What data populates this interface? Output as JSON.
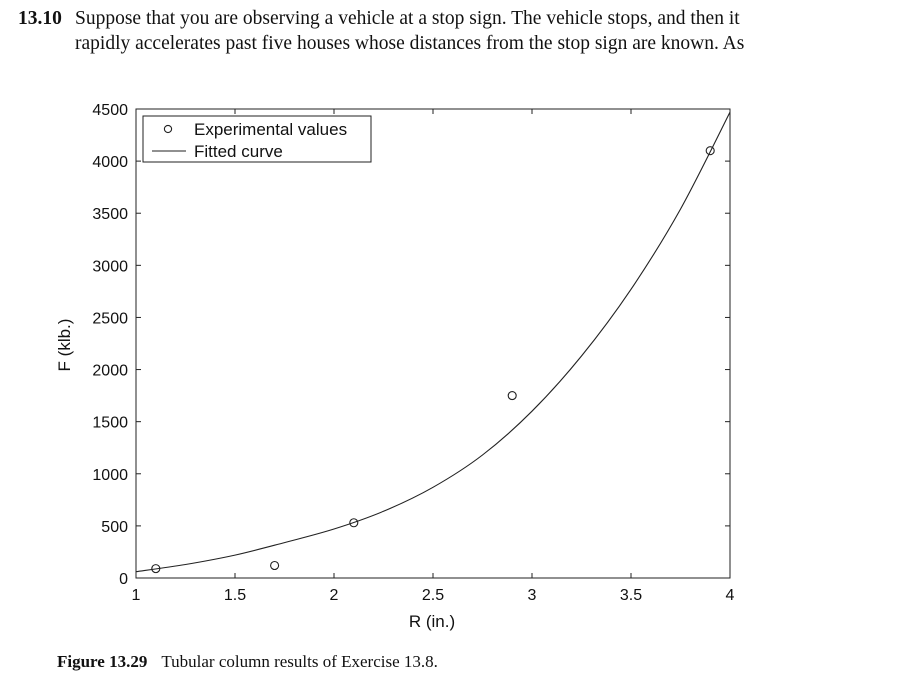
{
  "problem": {
    "number": "13.10",
    "line1": "Suppose that you are observing a vehicle at a stop sign. The vehicle stops, and then it",
    "line2": "rapidly accelerates past five houses whose distances from the stop sign are known. As"
  },
  "caption": {
    "label": "Figure 13.29",
    "text": "Tubular column results of Exercise 13.8."
  },
  "chart_data": {
    "type": "scatter",
    "title": "",
    "xlabel": "R (in.)",
    "ylabel": "F (klb.)",
    "xlim": [
      1,
      4
    ],
    "ylim": [
      0,
      4500
    ],
    "xticks": [
      1,
      1.5,
      2,
      2.5,
      3,
      3.5,
      4
    ],
    "xtick_labels": [
      "1",
      "1.5",
      "2",
      "2.5",
      "3",
      "3.5",
      "4"
    ],
    "yticks": [
      0,
      500,
      1000,
      1500,
      2000,
      2500,
      3000,
      3500,
      4000,
      4500
    ],
    "ytick_labels": [
      "0",
      "500",
      "1000",
      "1500",
      "2000",
      "2500",
      "3000",
      "3500",
      "4000",
      "4500"
    ],
    "grid": false,
    "legend_position": "top-left",
    "series": [
      {
        "name": "Experimental values",
        "marker": "circle",
        "x": [
          1.1,
          1.7,
          2.1,
          2.9,
          3.9
        ],
        "y": [
          90,
          120,
          530,
          1750,
          4100
        ]
      },
      {
        "name": "Fitted curve",
        "style": "line",
        "x": [
          1.0,
          1.25,
          1.5,
          1.75,
          2.0,
          2.25,
          2.5,
          2.75,
          3.0,
          3.25,
          3.5,
          3.75,
          4.0
        ],
        "y": [
          60,
          130,
          220,
          340,
          470,
          640,
          870,
          1180,
          1600,
          2130,
          2770,
          3540,
          4470
        ]
      }
    ]
  }
}
